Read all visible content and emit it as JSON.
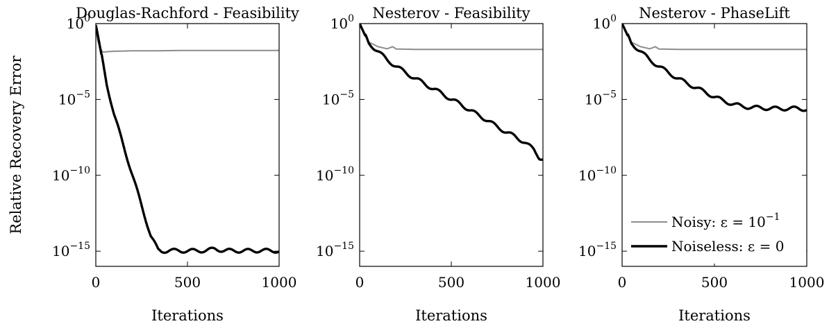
{
  "chart_data": [
    {
      "type": "line",
      "title": "Douglas-Rachford - Feasibility",
      "xlabel": "Iterations",
      "ylabel": "Relative Recovery Error",
      "xlim": [
        0,
        1000
      ],
      "ylim": [
        1e-16,
        1
      ],
      "yscale": "log",
      "xticks": [
        "0",
        "500",
        "1000"
      ],
      "yticks": [
        {
          "base": "10",
          "exp": "0"
        },
        {
          "base": "10",
          "exp": "−5"
        },
        {
          "base": "10",
          "exp": "−10"
        },
        {
          "base": "10",
          "exp": "−15"
        }
      ],
      "ytick_values": [
        1,
        1e-05,
        1e-10,
        1e-15
      ],
      "legend": null,
      "series": [
        {
          "key": "noisy",
          "color": "#8c8c8c",
          "x": [
            0,
            10,
            25,
            40,
            60,
            100,
            200,
            300,
            500,
            700,
            1000
          ],
          "y": [
            0.5,
            0.08,
            0.02,
            0.013,
            0.014,
            0.015,
            0.016,
            0.016,
            0.017,
            0.017,
            0.017
          ]
        },
        {
          "key": "noiseless",
          "color": "#000000",
          "x": [
            0,
            10,
            30,
            60,
            100,
            150,
            200,
            250,
            300,
            340,
            360,
            400,
            500,
            600,
            650,
            700,
            800,
            900,
            1000
          ],
          "y": [
            0.8,
            0.2,
            0.01,
            0.0001,
            1e-06,
            1e-08,
            1e-10,
            1e-12,
            1e-14,
            1.2e-15,
            1e-15,
            1.1e-15,
            1.05e-15,
            1.1e-15,
            1.4e-15,
            1.1e-15,
            1.05e-15,
            1.1e-15,
            1.05e-15
          ]
        }
      ]
    },
    {
      "type": "line",
      "title": "Nesterov - Feasibility",
      "xlabel": "Iterations",
      "ylabel": "",
      "xlim": [
        0,
        1000
      ],
      "ylim": [
        1e-16,
        1
      ],
      "yscale": "log",
      "xticks": [
        "0",
        "500",
        "1000"
      ],
      "yticks": [
        {
          "base": "10",
          "exp": "0"
        },
        {
          "base": "10",
          "exp": "−5"
        },
        {
          "base": "10",
          "exp": "−10"
        },
        {
          "base": "10",
          "exp": "−15"
        }
      ],
      "ytick_values": [
        1,
        1e-05,
        1e-10,
        1e-15
      ],
      "legend": null,
      "series": [
        {
          "key": "noisy",
          "color": "#8c8c8c",
          "x": [
            0,
            20,
            50,
            100,
            150,
            180,
            200,
            300,
            500,
            700,
            1000
          ],
          "y": [
            1,
            0.3,
            0.06,
            0.03,
            0.022,
            0.03,
            0.021,
            0.02,
            0.02,
            0.02,
            0.02
          ]
        },
        {
          "key": "noiseless",
          "color": "#000000",
          "x": [
            0,
            20,
            50,
            100,
            150,
            200,
            250,
            300,
            350,
            400,
            450,
            500,
            550,
            600,
            650,
            700,
            750,
            800,
            850,
            900,
            950,
            980,
            1000
          ],
          "y": [
            1,
            0.3,
            0.05,
            0.015,
            0.004,
            0.0015,
            0.0006,
            0.00025,
            0.00012,
            5e-05,
            2.5e-05,
            1e-05,
            5e-06,
            2e-06,
            9e-07,
            4e-07,
            1.6e-07,
            7e-08,
            3.5e-08,
            1.5e-08,
            5e-09,
            1.5e-09,
            1.2e-09
          ]
        }
      ]
    },
    {
      "type": "line",
      "title": "Nesterov - PhaseLift",
      "xlabel": "Iterations",
      "ylabel": "",
      "xlim": [
        0,
        1000
      ],
      "ylim": [
        1e-16,
        1
      ],
      "yscale": "log",
      "xticks": [
        "0",
        "500",
        "1000"
      ],
      "yticks": [
        {
          "base": "10",
          "exp": "0"
        },
        {
          "base": "10",
          "exp": "−5"
        },
        {
          "base": "10",
          "exp": "−10"
        },
        {
          "base": "10",
          "exp": "−15"
        }
      ],
      "ytick_values": [
        1,
        1e-05,
        1e-10,
        1e-15
      ],
      "legend": {
        "placement": "bottom-right",
        "entries": [
          {
            "series": "noisy",
            "text": "Noisy:  ε = 10",
            "sup": "−1"
          },
          {
            "series": "noiseless",
            "text": "Noiseless:  ε = 0",
            "sup": ""
          }
        ]
      },
      "series": [
        {
          "key": "noisy",
          "color": "#8c8c8c",
          "x": [
            0,
            20,
            50,
            100,
            150,
            180,
            200,
            300,
            500,
            700,
            1000
          ],
          "y": [
            1,
            0.3,
            0.06,
            0.03,
            0.022,
            0.03,
            0.021,
            0.02,
            0.02,
            0.02,
            0.02
          ]
        },
        {
          "key": "noiseless",
          "color": "#000000",
          "x": [
            0,
            20,
            50,
            100,
            150,
            200,
            250,
            300,
            350,
            400,
            450,
            500,
            550,
            600,
            650,
            700,
            750,
            800,
            850,
            900,
            950,
            1000
          ],
          "y": [
            1,
            0.3,
            0.05,
            0.015,
            0.004,
            0.0015,
            0.0006,
            0.00025,
            0.00012,
            6e-05,
            3e-05,
            1.5e-05,
            8e-06,
            5e-06,
            3.5e-06,
            3e-06,
            2.8e-06,
            2.6e-06,
            2.5e-06,
            2.5e-06,
            2.6e-06,
            2.2e-06
          ]
        }
      ]
    }
  ]
}
